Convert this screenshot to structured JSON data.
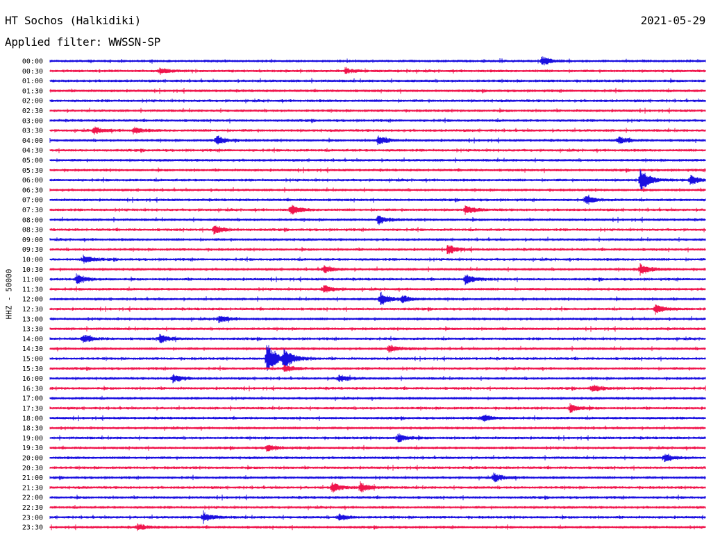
{
  "header": {
    "station": "HT Sochos (Halkidiki)",
    "date": "2021-05-29",
    "filter": "Applied filter: WWSSN-SP"
  },
  "chart_data": {
    "type": "line",
    "title": "HT Sochos (Halkidiki)",
    "subtitle": "Applied filter: WWSSN-SP",
    "ylabel": "HHZ - 50000",
    "xlabel": "",
    "y_ticks": [
      "00:00",
      "00:30",
      "01:00",
      "01:30",
      "02:00",
      "02:30",
      "03:00",
      "03:30",
      "04:00",
      "04:30",
      "05:00",
      "05:30",
      "06:00",
      "06:30",
      "07:00",
      "07:30",
      "08:00",
      "08:30",
      "09:00",
      "09:30",
      "10:00",
      "10:30",
      "11:00",
      "11:30",
      "12:00",
      "12:30",
      "13:00",
      "13:30",
      "14:00",
      "14:30",
      "15:00",
      "15:30",
      "16:00",
      "16:30",
      "17:00",
      "17:30",
      "18:00",
      "18:30",
      "19:00",
      "19:30",
      "20:00",
      "20:30",
      "21:00",
      "21:30",
      "22:00",
      "22:30",
      "23:00",
      "23:30"
    ],
    "trace_colors": [
      "#1a0fe0",
      "#f0154c"
    ],
    "trace_minutes": 30,
    "events": [
      {
        "row": "00:00",
        "minute": 22.5,
        "amp": 0.5
      },
      {
        "row": "00:30",
        "minute": 5.0,
        "amp": 0.35
      },
      {
        "row": "00:30",
        "minute": 13.5,
        "amp": 0.3
      },
      {
        "row": "03:30",
        "minute": 2.0,
        "amp": 0.4
      },
      {
        "row": "03:30",
        "minute": 3.8,
        "amp": 0.35
      },
      {
        "row": "04:00",
        "minute": 7.6,
        "amp": 0.55
      },
      {
        "row": "04:00",
        "minute": 15.0,
        "amp": 0.45
      },
      {
        "row": "04:00",
        "minute": 26.0,
        "amp": 0.4
      },
      {
        "row": "06:00",
        "minute": 27.0,
        "amp": 1.3
      },
      {
        "row": "06:00",
        "minute": 29.3,
        "amp": 0.5
      },
      {
        "row": "07:00",
        "minute": 24.5,
        "amp": 0.45
      },
      {
        "row": "07:30",
        "minute": 11.0,
        "amp": 0.55
      },
      {
        "row": "07:30",
        "minute": 19.0,
        "amp": 0.45
      },
      {
        "row": "08:00",
        "minute": 15.0,
        "amp": 0.45
      },
      {
        "row": "08:30",
        "minute": 7.5,
        "amp": 0.5
      },
      {
        "row": "09:30",
        "minute": 18.2,
        "amp": 0.55
      },
      {
        "row": "10:00",
        "minute": 1.5,
        "amp": 0.45
      },
      {
        "row": "10:30",
        "minute": 27.0,
        "amp": 0.65
      },
      {
        "row": "10:30",
        "minute": 12.5,
        "amp": 0.4
      },
      {
        "row": "11:00",
        "minute": 1.2,
        "amp": 0.5
      },
      {
        "row": "11:00",
        "minute": 19.0,
        "amp": 0.55
      },
      {
        "row": "11:30",
        "minute": 12.5,
        "amp": 0.45
      },
      {
        "row": "12:00",
        "minute": 15.1,
        "amp": 0.75
      },
      {
        "row": "12:00",
        "minute": 16.1,
        "amp": 0.4
      },
      {
        "row": "12:30",
        "minute": 27.7,
        "amp": 0.55
      },
      {
        "row": "13:00",
        "minute": 7.7,
        "amp": 0.4
      },
      {
        "row": "14:00",
        "minute": 1.5,
        "amp": 0.45
      },
      {
        "row": "14:00",
        "minute": 5.0,
        "amp": 0.5
      },
      {
        "row": "14:30",
        "minute": 15.5,
        "amp": 0.4
      },
      {
        "row": "15:00",
        "minute": 9.9,
        "amp": 1.9
      },
      {
        "row": "15:00",
        "minute": 10.7,
        "amp": 1.2
      },
      {
        "row": "15:30",
        "minute": 10.7,
        "amp": 0.4
      },
      {
        "row": "16:00",
        "minute": 5.6,
        "amp": 0.45
      },
      {
        "row": "16:00",
        "minute": 13.2,
        "amp": 0.4
      },
      {
        "row": "16:30",
        "minute": 24.8,
        "amp": 0.4
      },
      {
        "row": "17:30",
        "minute": 23.8,
        "amp": 0.45
      },
      {
        "row": "18:00",
        "minute": 19.8,
        "amp": 0.4
      },
      {
        "row": "19:00",
        "minute": 15.9,
        "amp": 0.5
      },
      {
        "row": "19:30",
        "minute": 9.9,
        "amp": 0.35
      },
      {
        "row": "20:00",
        "minute": 28.1,
        "amp": 0.45
      },
      {
        "row": "21:00",
        "minute": 20.3,
        "amp": 0.5
      },
      {
        "row": "21:30",
        "minute": 12.9,
        "amp": 0.55
      },
      {
        "row": "21:30",
        "minute": 14.2,
        "amp": 0.55
      },
      {
        "row": "23:00",
        "minute": 7.0,
        "amp": 0.55
      },
      {
        "row": "23:00",
        "minute": 13.2,
        "amp": 0.35
      },
      {
        "row": "23:30",
        "minute": 4.0,
        "amp": 0.35
      }
    ]
  }
}
